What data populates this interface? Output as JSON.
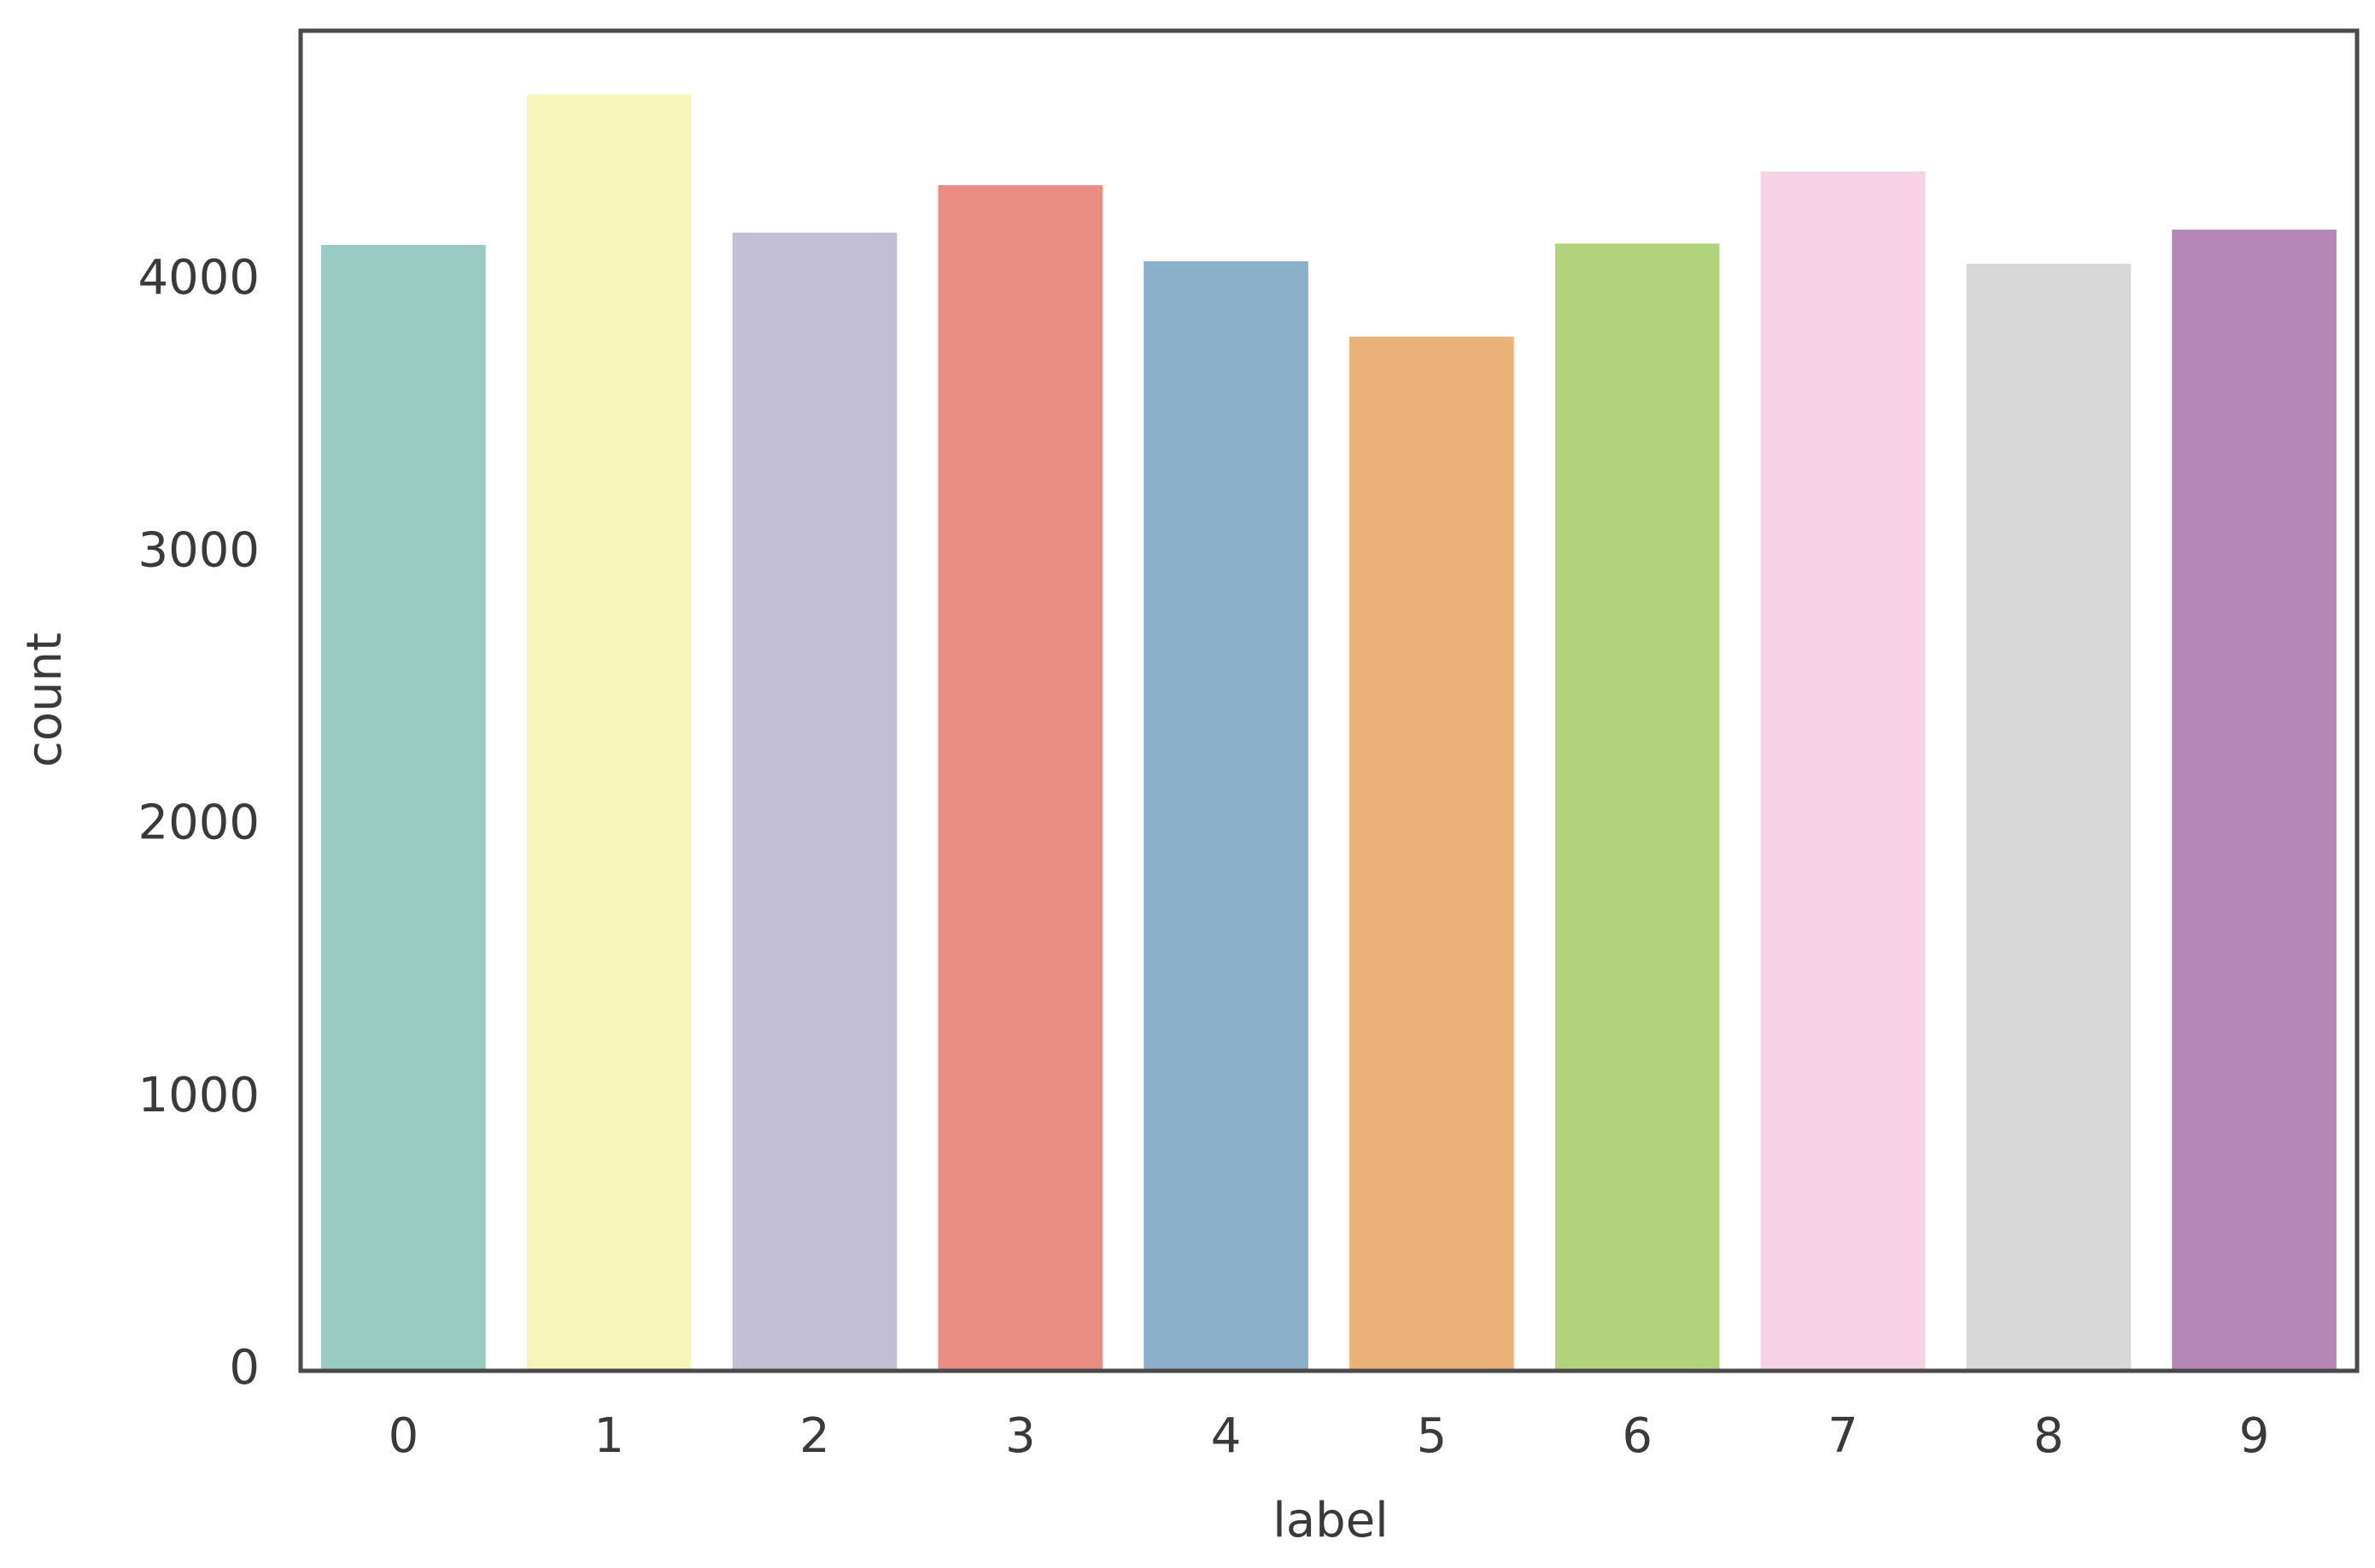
{
  "chart_data": {
    "type": "bar",
    "x_label": "label",
    "y_label": "count",
    "categories": [
      "0",
      "1",
      "2",
      "3",
      "4",
      "5",
      "6",
      "7",
      "8",
      "9"
    ],
    "values": [
      4132,
      4684,
      4177,
      4351,
      4072,
      3795,
      4137,
      4401,
      4063,
      4188
    ],
    "colors": [
      "#98cac1",
      "#f6f6bb",
      "#c2bed6",
      "#ea8e83",
      "#8ab0ca",
      "#eab276",
      "#b0d37c",
      "#f5d3e4",
      "#d8d8d8",
      "#b586b6"
    ],
    "ylim": [
      0,
      4918
    ],
    "yticks": [
      0,
      1000,
      2000,
      3000,
      4000
    ],
    "grid": false
  }
}
